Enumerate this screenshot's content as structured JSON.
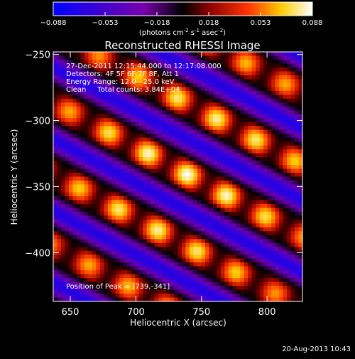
{
  "chart_data": {
    "type": "heatmap",
    "title": "Reconstructed RHESSI Image",
    "xlabel": "Heliocentric X (arcsec)",
    "ylabel": "Heliocentric Y (arcsec)",
    "xlim": [
      637,
      827
    ],
    "ylim": [
      -437,
      -248
    ],
    "x_ticks": [
      650,
      700,
      750,
      800
    ],
    "y_ticks": [
      -250,
      -300,
      -350,
      -400
    ],
    "grid": false,
    "colorbar": {
      "ticks": [
        "-0.088",
        "-0.053",
        "-0.018",
        "0.018",
        "0.053",
        "0.088"
      ],
      "range": [
        -0.088,
        0.088
      ],
      "label_main": "(photons cm",
      "label_exp1": "-2",
      "label_mid1": " s",
      "label_exp2": "-1",
      "label_mid2": " asec",
      "label_exp3": "-2",
      "label_end": ")"
    },
    "info_lines": [
      "27-Dec-2011 12:15:44.000 to 12:17:08.000",
      "Detectors: 4F 5F 6F 7F 8F, Att 1",
      "Energy Range: 12.0 - 25.0 keV",
      "Clean     Total counts: 3.84E+04"
    ],
    "peak_text": "Position of Peak = [739,-341]",
    "peak": {
      "x": 739,
      "y": -341,
      "value": 0.088
    }
  },
  "footer": {
    "date": "20-Aug-2013 10:43"
  },
  "colors": {
    "background": "#000000",
    "text": "#ffffff"
  }
}
